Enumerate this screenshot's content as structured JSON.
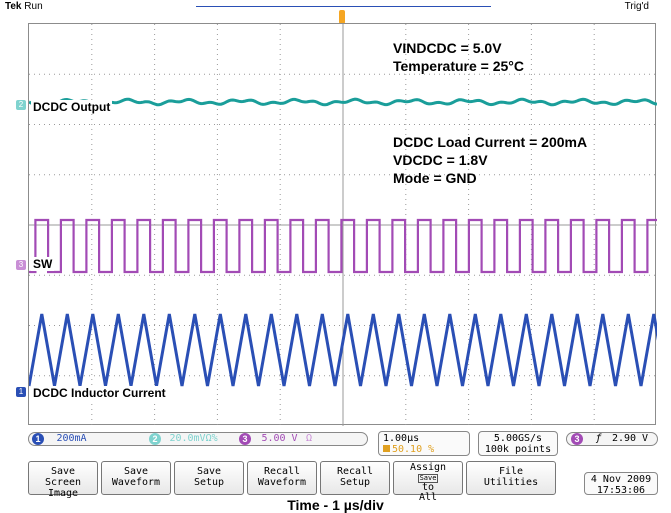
{
  "header": {
    "brand": "Tek",
    "mode": "Run",
    "trigger_status": "Trig'd"
  },
  "annotations": {
    "vin": "VINDCDC = 5.0V",
    "temp": "Temperature = 25°C",
    "load": "DCDC Load Current = 200mA",
    "vdcdc": "VDCDC = 1.8V",
    "mode": "Mode = GND"
  },
  "traces": {
    "ch2": {
      "label": "DCDC Output",
      "marker": "2",
      "color": "#1a9e9a"
    },
    "ch3": {
      "label": "SW",
      "marker": "3",
      "color": "#a24bb5"
    },
    "ch1": {
      "label": "DCDC Inductor Current",
      "marker": "1",
      "color": "#2a4fb5"
    }
  },
  "channels": {
    "ch1": {
      "num": "1",
      "scale": "200mA",
      "color": "#2a4fb5"
    },
    "ch2": {
      "num": "2",
      "scale": "20.0mVΩ%",
      "color": "#7fd3cf"
    },
    "ch3": {
      "num": "3",
      "scale": "5.00 V",
      "unit_icon": "Ω",
      "color": "#a24bb5"
    }
  },
  "timebase": {
    "scale": "1.00µs",
    "position": "50.10 %"
  },
  "acquisition": {
    "rate": "5.00GS/s",
    "points": "100k points"
  },
  "trigger": {
    "channel": "3",
    "slope_icon": "rising-edge",
    "level": "2.90 V"
  },
  "softkeys": [
    {
      "line1": "Save",
      "line2": "Screen Image"
    },
    {
      "line1": "Save",
      "line2": "Waveform"
    },
    {
      "line1": "Save",
      "line2": "Setup"
    },
    {
      "line1": "Recall",
      "line2": "Waveform"
    },
    {
      "line1": "Recall",
      "line2": "Setup"
    },
    {
      "line1": "Assign",
      "mid": "Save",
      "line2": "to",
      "line3": "All"
    },
    {
      "line1": "File",
      "line2": "Utilities"
    }
  ],
  "datetime": {
    "date": "4 Nov 2009",
    "time": "17:53:06"
  },
  "footer": {
    "timebase_label": "Time - 1 µs/div"
  }
}
